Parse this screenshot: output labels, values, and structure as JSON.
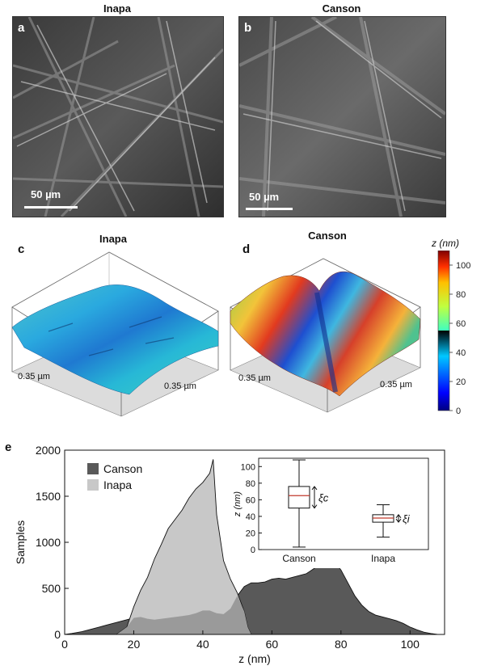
{
  "panels": {
    "a": {
      "letter": "a",
      "title": "Inapa",
      "scale_label": "50 µm"
    },
    "b": {
      "letter": "b",
      "title": "Canson",
      "scale_label": "50 µm"
    },
    "c": {
      "letter": "c",
      "title": "Inapa",
      "dim_left": "0.35 µm",
      "dim_right": "0.35 µm"
    },
    "d": {
      "letter": "d",
      "title": "Canson",
      "dim_left": "0.35 µm",
      "dim_right": "0.35 µm"
    },
    "e": {
      "letter": "e"
    }
  },
  "colorbar": {
    "label": "z (nm)",
    "ticks": [
      "100",
      "80",
      "60",
      "40",
      "20",
      "0"
    ],
    "min": 0,
    "max": 110
  },
  "chart_data": [
    {
      "type": "area",
      "xlabel": "z (nm)",
      "ylabel": "Samples",
      "xlim": [
        0,
        110
      ],
      "ylim": [
        0,
        2000
      ],
      "x_ticks": [
        "0",
        "20",
        "40",
        "60",
        "80",
        "100"
      ],
      "y_ticks": [
        "0",
        "500",
        "1000",
        "1500",
        "2000"
      ],
      "legend": [
        {
          "name": "Canson",
          "color": "#595959"
        },
        {
          "name": "Inapa",
          "color": "#c8c8c8"
        }
      ],
      "legend_position": "top-left",
      "series": [
        {
          "name": "Canson",
          "color": "#595959",
          "x": [
            0,
            2,
            5,
            8,
            10,
            12,
            14,
            16,
            18,
            20,
            22,
            24,
            26,
            28,
            30,
            32,
            34,
            36,
            38,
            40,
            42,
            44,
            46,
            48,
            50,
            52,
            54,
            56,
            58,
            60,
            62,
            64,
            66,
            68,
            70,
            72,
            74,
            76,
            78,
            80,
            82,
            84,
            86,
            88,
            90,
            92,
            94,
            96,
            98,
            100,
            102,
            104,
            106,
            108
          ],
          "values": [
            0,
            10,
            30,
            60,
            80,
            100,
            120,
            140,
            160,
            180,
            190,
            170,
            160,
            170,
            180,
            190,
            200,
            210,
            230,
            260,
            260,
            230,
            220,
            280,
            420,
            520,
            560,
            560,
            570,
            600,
            610,
            600,
            620,
            640,
            660,
            710,
            760,
            810,
            790,
            700,
            560,
            420,
            320,
            250,
            210,
            190,
            170,
            150,
            120,
            80,
            50,
            25,
            10,
            0
          ]
        },
        {
          "name": "Inapa",
          "color": "#c8c8c8",
          "x": [
            15,
            18,
            20,
            22,
            24,
            26,
            28,
            30,
            32,
            34,
            36,
            38,
            40,
            42,
            43,
            44,
            46,
            48,
            50,
            52,
            53,
            54
          ],
          "values": [
            0,
            80,
            300,
            480,
            620,
            820,
            980,
            1150,
            1250,
            1350,
            1480,
            1580,
            1650,
            1750,
            1900,
            1300,
            800,
            600,
            450,
            250,
            80,
            0
          ]
        }
      ]
    },
    {
      "type": "box",
      "ylabel": "z (nm)",
      "ylim": [
        0,
        110
      ],
      "y_ticks": [
        "0",
        "20",
        "40",
        "60",
        "80",
        "100"
      ],
      "categories": [
        "Canson",
        "Inapa"
      ],
      "boxes": [
        {
          "name": "Canson",
          "min": 3,
          "q1": 50,
          "median": 65,
          "q3": 76,
          "max": 108,
          "annotation": "ξc"
        },
        {
          "name": "Inapa",
          "min": 15,
          "q1": 33,
          "median": 38,
          "q3": 42,
          "max": 54,
          "annotation": "ξi"
        }
      ]
    }
  ]
}
